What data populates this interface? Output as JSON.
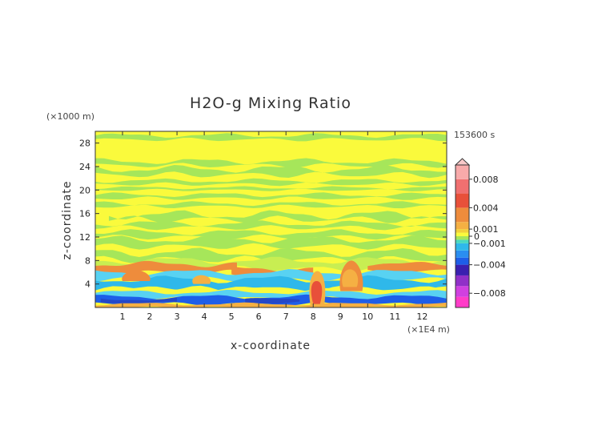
{
  "chart_data": {
    "type": "heatmap",
    "title": "H2O-g Mixing Ratio",
    "xlabel": "x-coordinate",
    "ylabel": "z-coordinate",
    "x_unit": "(×1E4 m)",
    "y_unit": "(×1000 m)",
    "time_label": "153600 s",
    "xlim": [
      0,
      12.9
    ],
    "ylim": [
      0,
      30
    ],
    "x_ticks": [
      1,
      2,
      3,
      4,
      5,
      6,
      7,
      8,
      9,
      10,
      11,
      12
    ],
    "y_ticks": [
      4,
      8,
      12,
      16,
      20,
      24,
      28
    ],
    "colorbar": {
      "range": [
        -0.01,
        0.01
      ],
      "labels": [
        {
          "text": "0.008",
          "value": 0.008
        },
        {
          "text": "0.004",
          "value": 0.004
        },
        {
          "text": "0.001",
          "value": 0.001
        },
        {
          "text": "0",
          "value": 0.0
        },
        {
          "text": "−0.001",
          "value": -0.001
        },
        {
          "text": "−0.004",
          "value": -0.004
        },
        {
          "text": "−0.008",
          "value": -0.008
        }
      ]
    },
    "field_description_bands": [
      {
        "z": [
          28.5,
          29.5
        ],
        "value": 0.0003,
        "color": "#f3f33a"
      },
      {
        "z": [
          24,
          27
        ],
        "value": 0.0,
        "color": "#fafa3c"
      },
      {
        "z": [
          23,
          24.5
        ],
        "value": -0.0003,
        "color": "#a6e65a"
      },
      {
        "z": [
          12,
          22
        ],
        "value": 0.0,
        "color": "#fafa3c"
      },
      {
        "z": [
          6.5,
          8
        ],
        "value": 0.003,
        "color": "#ee8c3c"
      },
      {
        "z": [
          3,
          5
        ],
        "value": -0.0015,
        "color": "#2fb8ea"
      },
      {
        "z": [
          0.3,
          2
        ],
        "value": -0.004,
        "color": "#1e5ee8"
      }
    ]
  },
  "colors": {
    "background": "#ffffff",
    "frame": "#333333",
    "zero_band": "#fafa3c",
    "slight_negative": "#a6e65a"
  }
}
